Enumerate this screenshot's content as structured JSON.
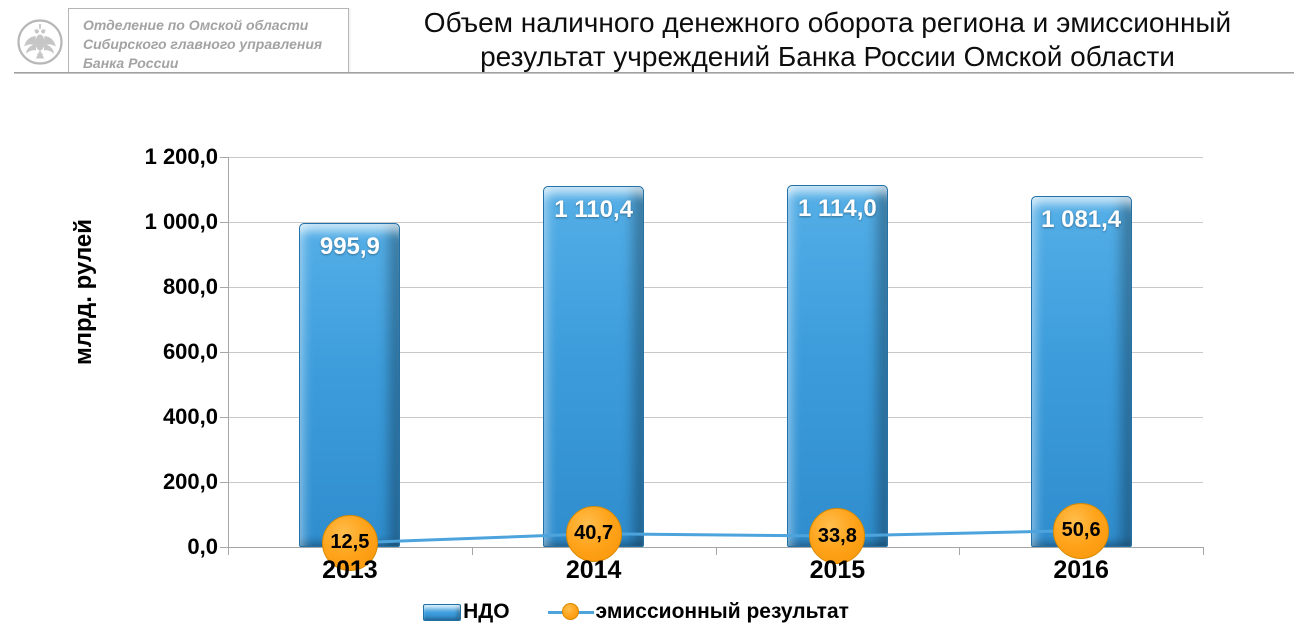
{
  "header": {
    "logo": "bank-of-russia-double-headed-eagle-emblem",
    "org": {
      "lines": [
        "Отделение по Омской области",
        "Сибирского главного управления",
        "Банка России"
      ]
    },
    "title_line1": "Объем наличного денежного оборота региона и эмиссионный",
    "title_line2": "результат учреждений Банка России Омской области"
  },
  "chart_data": {
    "type": "bar",
    "title": "Объем наличного денежного оборота региона и эмиссионный результат учреждений Банка России Омской области",
    "ylabel": "млрд. рулей",
    "xlabel": "",
    "categories": [
      "2013",
      "2014",
      "2015",
      "2016"
    ],
    "series": [
      {
        "name": "НДО",
        "type": "bar",
        "color": "#3D9ADC",
        "values": [
          995.9,
          1110.4,
          1114.0,
          1081.4
        ],
        "labels": [
          "995,9",
          "1 110,4",
          "1 114,0",
          "1 081,4"
        ]
      },
      {
        "name": "эмиссионный результат",
        "type": "line",
        "marker_color": "#FF9C00",
        "line_color": "#4DA3DC",
        "values": [
          12.5,
          40.7,
          33.8,
          50.6
        ],
        "labels": [
          "12,5",
          "40,7",
          "33,8",
          "50,6"
        ]
      }
    ],
    "ylim": [
      0,
      1200
    ],
    "ytick_values": [
      1200,
      1000,
      800,
      600,
      400,
      200,
      0
    ],
    "ytick_labels": [
      "1 200,0",
      "1 000,0",
      "800,0",
      "600,0",
      "400,0",
      "200,0",
      "0,0"
    ],
    "grid": true,
    "legend_position": "bottom"
  }
}
